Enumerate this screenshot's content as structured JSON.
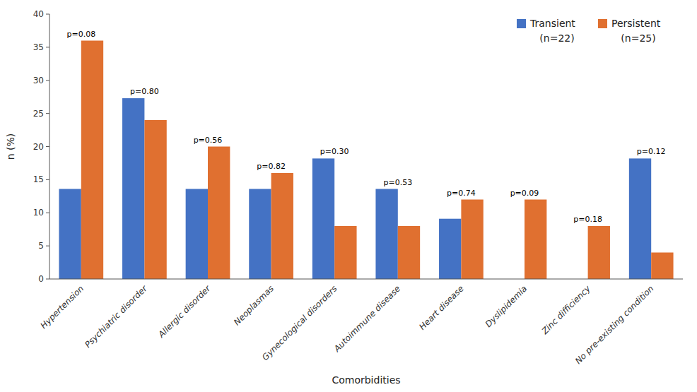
{
  "chart_data": {
    "type": "bar",
    "xlabel": "Comorbidities",
    "ylabel": "n (%)",
    "categories": [
      "Hypertension",
      "Psychiatric disorder",
      "Allergic disorder",
      "Neoplasmas",
      "Gynecological disorders",
      "Autoimmune disease",
      "Heart disease",
      "Dyslipidemia",
      "Zinc difficiency",
      "No pre-existing condition"
    ],
    "series": [
      {
        "name": "Transient",
        "note": "(n=22)",
        "color": "#4472C4",
        "values": [
          13.6,
          27.3,
          13.6,
          13.6,
          18.2,
          13.6,
          9.1,
          0,
          0,
          18.2
        ]
      },
      {
        "name": "Persistent",
        "note": "(n=25)",
        "color": "#E07030",
        "values": [
          36.0,
          24.0,
          20.0,
          16.0,
          8.0,
          8.0,
          12.0,
          12.0,
          8.0,
          4.0
        ]
      }
    ],
    "annotations": [
      "p=0.08",
      "p=0.80",
      "p=0.56",
      "p=0.82",
      "p=0.30",
      "p=0.53",
      "p=0.74",
      "p=0.09",
      "p=0.18",
      "p=0.12"
    ],
    "ylim": [
      0,
      40
    ],
    "yticks": [
      0,
      5,
      10,
      15,
      20,
      25,
      30,
      35,
      40
    ],
    "legend": "upper right",
    "grid": false
  }
}
